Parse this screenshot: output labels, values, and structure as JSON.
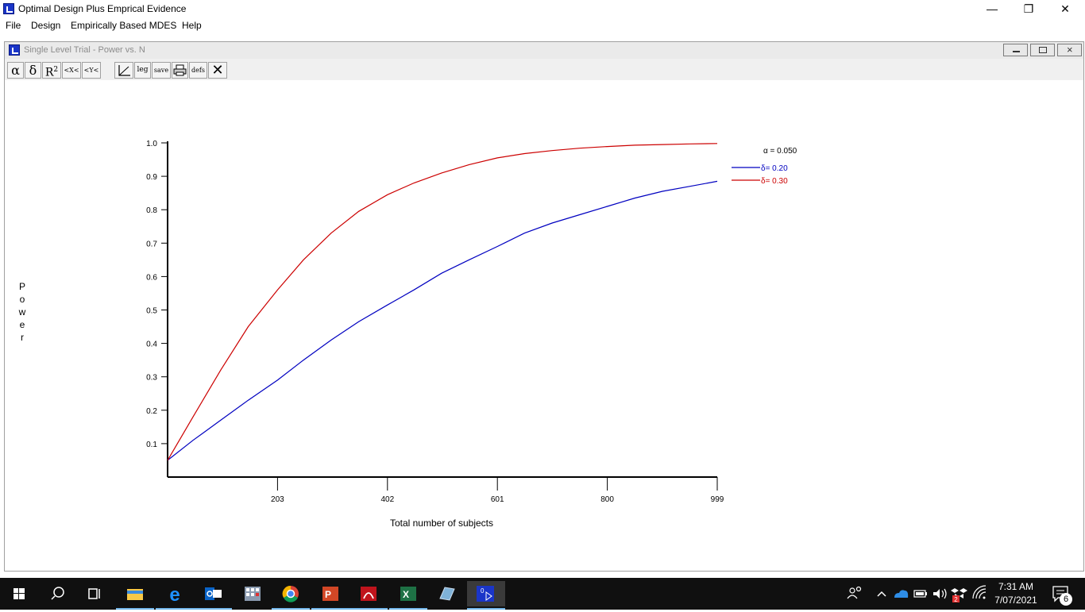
{
  "window": {
    "title": "Optimal Design Plus Emprical Evidence",
    "controls": {
      "minimize": "—",
      "restore": "❐",
      "close": "✕"
    }
  },
  "menu": {
    "items": [
      "File",
      "Design",
      "Empirically Based MDES",
      "Help"
    ]
  },
  "child_window": {
    "title": "Single Level Trial - Power vs. N"
  },
  "toolbar": {
    "alpha": "α",
    "delta": "δ",
    "r2": "R",
    "r2_sup": "2",
    "zoom_x": "<X<",
    "zoom_y": "<Y<",
    "leg": "leg",
    "save": "save",
    "defs": "defs",
    "close": "✕"
  },
  "chart_data": {
    "type": "line",
    "title": "",
    "xlabel": "Total number of subjects",
    "ylabel": "Power",
    "xlim": [
      4,
      999
    ],
    "ylim": [
      0,
      1.0
    ],
    "x_ticks": [
      203,
      402,
      601,
      800,
      999
    ],
    "y_ticks": [
      0.1,
      0.2,
      0.3,
      0.4,
      0.5,
      0.6,
      0.7,
      0.8,
      0.9,
      1.0
    ],
    "legend_header": "α = 0.050",
    "legend_position": "top-right",
    "series": [
      {
        "name": "δ= 0.20",
        "color": "#0000c0",
        "x": [
          4,
          50,
          100,
          150,
          203,
          250,
          300,
          350,
          402,
          450,
          500,
          550,
          601,
          650,
          700,
          750,
          800,
          850,
          900,
          950,
          999
        ],
        "y": [
          0.05,
          0.11,
          0.17,
          0.23,
          0.29,
          0.35,
          0.41,
          0.465,
          0.515,
          0.56,
          0.61,
          0.65,
          0.69,
          0.73,
          0.76,
          0.785,
          0.81,
          0.835,
          0.855,
          0.87,
          0.885
        ]
      },
      {
        "name": "δ= 0.30",
        "color": "#cc0000",
        "x": [
          4,
          50,
          100,
          150,
          203,
          250,
          300,
          350,
          402,
          450,
          500,
          550,
          601,
          650,
          700,
          750,
          800,
          850,
          900,
          950,
          999
        ],
        "y": [
          0.05,
          0.18,
          0.32,
          0.45,
          0.56,
          0.65,
          0.73,
          0.795,
          0.845,
          0.88,
          0.91,
          0.935,
          0.955,
          0.968,
          0.977,
          0.984,
          0.989,
          0.993,
          0.995,
          0.997,
          0.998
        ]
      }
    ]
  },
  "taskbar": {
    "time": "7:31 AM",
    "date": "7/07/2021",
    "notification_count": "6",
    "apps": [
      "start-icon",
      "search-icon",
      "task-view-icon",
      "file-explorer-icon",
      "edge-icon",
      "outlook-icon",
      "calculator-icon",
      "chrome-icon",
      "powerpoint-icon",
      "acrobat-icon",
      "excel-icon",
      "notepad-icon",
      "optimal-design-icon"
    ]
  }
}
